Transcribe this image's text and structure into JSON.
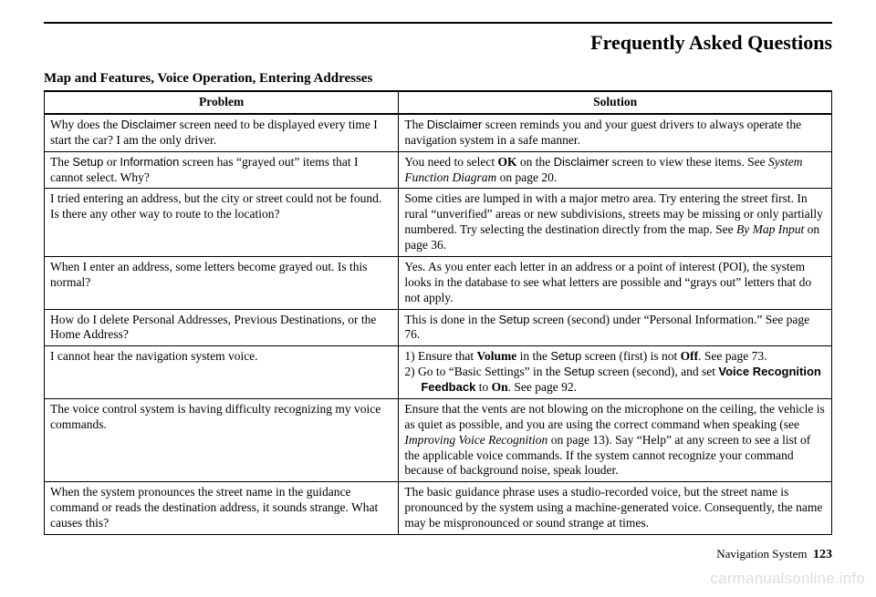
{
  "page_title": "Frequently Asked Questions",
  "section_title": "Map and Features, Voice Operation, Entering Addresses",
  "columns": {
    "problem": "Problem",
    "solution": "Solution"
  },
  "rows": [
    {
      "p1": "Why does the ",
      "p2": "Disclaimer",
      "p3": " screen need to be displayed every time I start the car? I am the only driver.",
      "s1": "The ",
      "s2": "Disclaimer",
      "s3": " screen reminds you and your guest drivers to always operate the navigation system in a safe manner."
    },
    {
      "p1": "The ",
      "p2": "Setup",
      "p3": " or ",
      "p4": "Information",
      "p5": " screen has “grayed out” items that I cannot select. Why?",
      "s1": "You need to select ",
      "s2": "OK",
      "s3": " on the ",
      "s4": "Disclaimer",
      "s5": " screen to view these items. See ",
      "s6": "System Function Diagram",
      "s7": " on page 20."
    },
    {
      "p": "I tried entering an address, but the city or street could not be found. Is there any other way to route to the location?",
      "s1": "Some cities are lumped in with a major metro area. Try entering the street first. In rural “unverified” areas or new subdivisions, streets may be missing or only partially numbered. Try selecting the destination directly from the map. See ",
      "s2": "By Map Input",
      "s3": " on page 36."
    },
    {
      "p": "When I enter an address, some letters become grayed out. Is this normal?",
      "s": "Yes. As you enter each letter in an address or a point of interest (POI), the system looks in the database to see what letters are possible and “grays out” letters that do not apply."
    },
    {
      "p": "How do I delete Personal Addresses, Previous Destinations, or the Home Address?",
      "s1": "This is done in the ",
      "s2": "Setup",
      "s3": " screen (second) under “Personal Information.” See page 76."
    },
    {
      "p": "I cannot hear the navigation system voice.",
      "l1a": "1) Ensure that ",
      "l1b": "Volume",
      "l1c": " in the ",
      "l1d": "Setup",
      "l1e": " screen (first) is not ",
      "l1f": "Off",
      "l1g": ". See page 73.",
      "l2a": "2) Go to “Basic Settings” in the ",
      "l2b": "Setup",
      "l2c": " screen (second), and set ",
      "l2d": "Voice Recognition Feedback",
      "l2e": " to ",
      "l2f": "On",
      "l2g": ". See page 92."
    },
    {
      "p": "The voice control system is having difficulty recognizing my voice commands.",
      "s1": "Ensure that the vents are not blowing on the microphone on the ceiling, the vehicle is as quiet as possible, and you are using the correct command when speaking (see ",
      "s2": "Improving Voice Recognition",
      "s3": " on page 13). Say “Help” at any screen to see a list of the applicable voice commands. If the system cannot recognize your command because of background noise, speak louder."
    },
    {
      "p": "When the system pronounces the street name in the guidance command or reads the destination address, it sounds strange. What causes this?",
      "s": "The basic guidance phrase uses a studio-recorded voice, but the street name is pronounced by the system using a machine-generated voice. Consequently, the name may be mispronounced or sound strange at times."
    }
  ],
  "footer_label": "Navigation System",
  "page_number": "123",
  "watermark": "carmanualsonline.info"
}
